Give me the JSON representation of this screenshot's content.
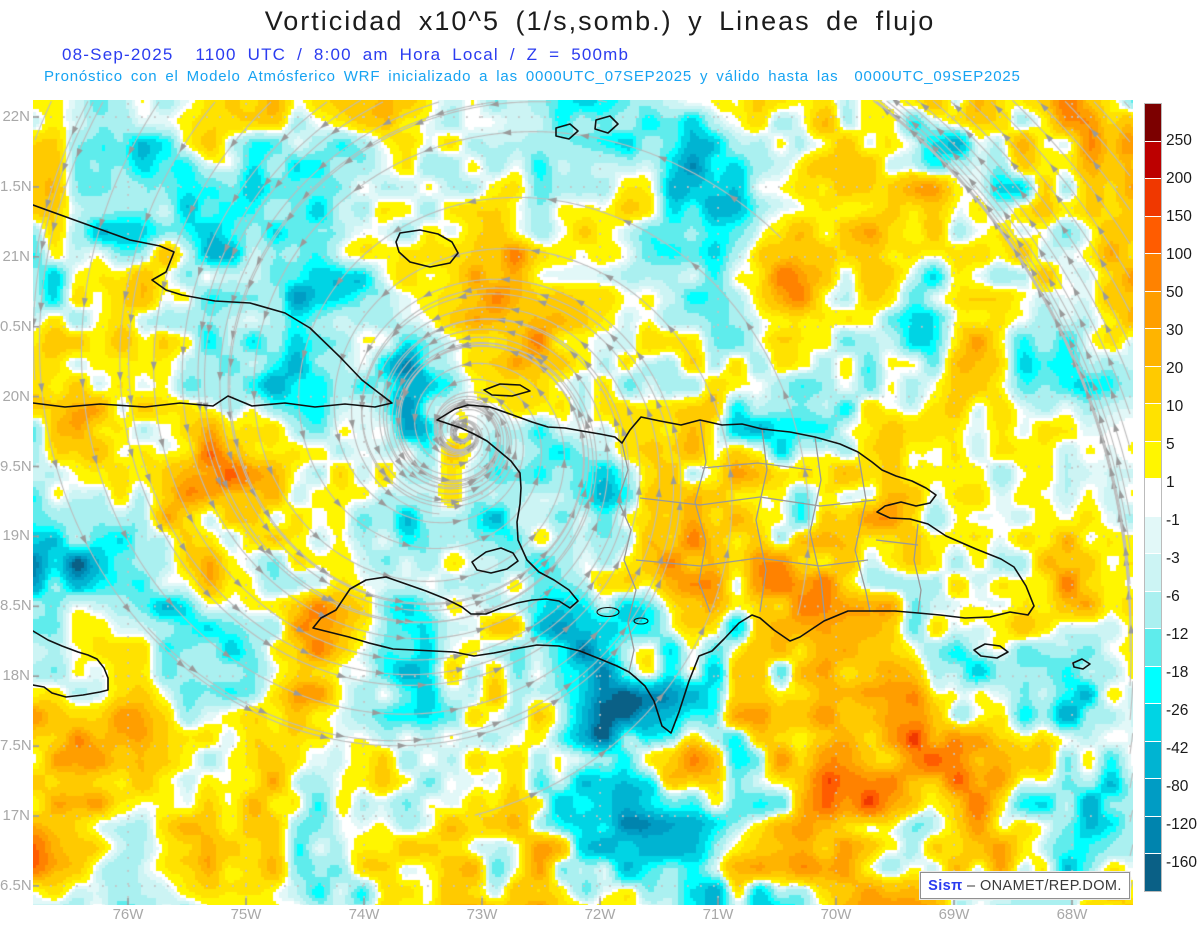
{
  "title": "Vorticidad x10^5 (1/s,somb.) y Lineas de flujo",
  "subtitle": {
    "datetime_line": "08-Sep-2025  1100 UTC / 8:00 am Hora Local / Z = 500mb",
    "model_line": "Pronóstico con el Modelo Atmósferico WRF inicializado a las 0000UTC_07SEP2025 y válido hasta las  0000UTC_09SEP2025"
  },
  "map": {
    "lat_tick_labels": [
      "22N",
      "1.5N",
      "21N",
      "0.5N",
      "20N",
      "9.5N",
      "19N",
      "8.5N",
      "18N",
      "7.5N",
      "17N",
      "6.5N"
    ],
    "lon_tick_labels": [
      "76W",
      "75W",
      "74W",
      "73W",
      "72W",
      "71W",
      "70W",
      "69W",
      "68W"
    ]
  },
  "colorbar": {
    "tick_labels": [
      "250",
      "200",
      "150",
      "100",
      "50",
      "30",
      "20",
      "10",
      "5",
      "1",
      "-1",
      "-3",
      "-6",
      "-12",
      "-18",
      "-26",
      "-42",
      "-80",
      "-120",
      "-160"
    ],
    "segment_colors": [
      "#7c0000",
      "#bc0000",
      "#f03800",
      "#ff5c00",
      "#ff8200",
      "#ff9e00",
      "#ffb400",
      "#ffca00",
      "#ffe200",
      "#fff600",
      "#ffffff",
      "#e2f8f8",
      "#ccf4f4",
      "#aaf0f0",
      "#5fecec",
      "#00ffff",
      "#00d4e4",
      "#00b4d2",
      "#009cc4",
      "#0084ae",
      "#0a6086"
    ]
  },
  "watermark": {
    "brand": "Sisπ",
    "separator": " – ",
    "org": "ONAMET/REP.DOM."
  },
  "colors": {
    "title_text": "#1c1c1c",
    "subtitle_datetime": "#2b3cf0",
    "subtitle_model": "#16a3f2",
    "axis_label": "#a8a8a8",
    "colorbar_tick_text": "#1a1a1a",
    "streamline": "#bcbcbc",
    "arrow": "#9a9a9a",
    "coastline": "#111111",
    "province_border": "#999999",
    "grid_dots": "#c4c4c4",
    "watermark_brand": "#2b3cf0",
    "watermark_org": "#3a3a3a"
  },
  "chart_data": {
    "type": "heatmap",
    "subtype": "filled-contour vorticity map with streamlines overlay",
    "title": "Vorticidad x10^5 (1/s,somb.) y Lineas de flujo",
    "model": "WRF",
    "level": "Z = 500mb",
    "valid_time": "08-Sep-2025 1100 UTC / 8:00 am Hora Local",
    "initialized": "0000UTC_07SEP2025",
    "valid_until": "0000UTC_09SEP2025",
    "units": "x10^5 (1/s)",
    "x_ticks": [
      "76W",
      "75W",
      "74W",
      "73W",
      "72W",
      "71W",
      "70W",
      "69W",
      "68W"
    ],
    "y_ticks": [
      "22N",
      "1.5N",
      "21N",
      "0.5N",
      "20N",
      "9.5N",
      "19N",
      "8.5N",
      "18N",
      "7.5N",
      "17N",
      "6.5N"
    ],
    "colorbar_levels": [
      250,
      200,
      150,
      100,
      50,
      30,
      20,
      10,
      5,
      1,
      -1,
      -3,
      -6,
      -12,
      -18,
      -26,
      -42,
      -80,
      -120,
      -160
    ],
    "legend_position": "right",
    "grid": "dotted lat/lon grid at 0.5 deg latitude rows and 1 deg longitude columns",
    "source": "Sisπ – ONAMET/REP.DOM."
  }
}
